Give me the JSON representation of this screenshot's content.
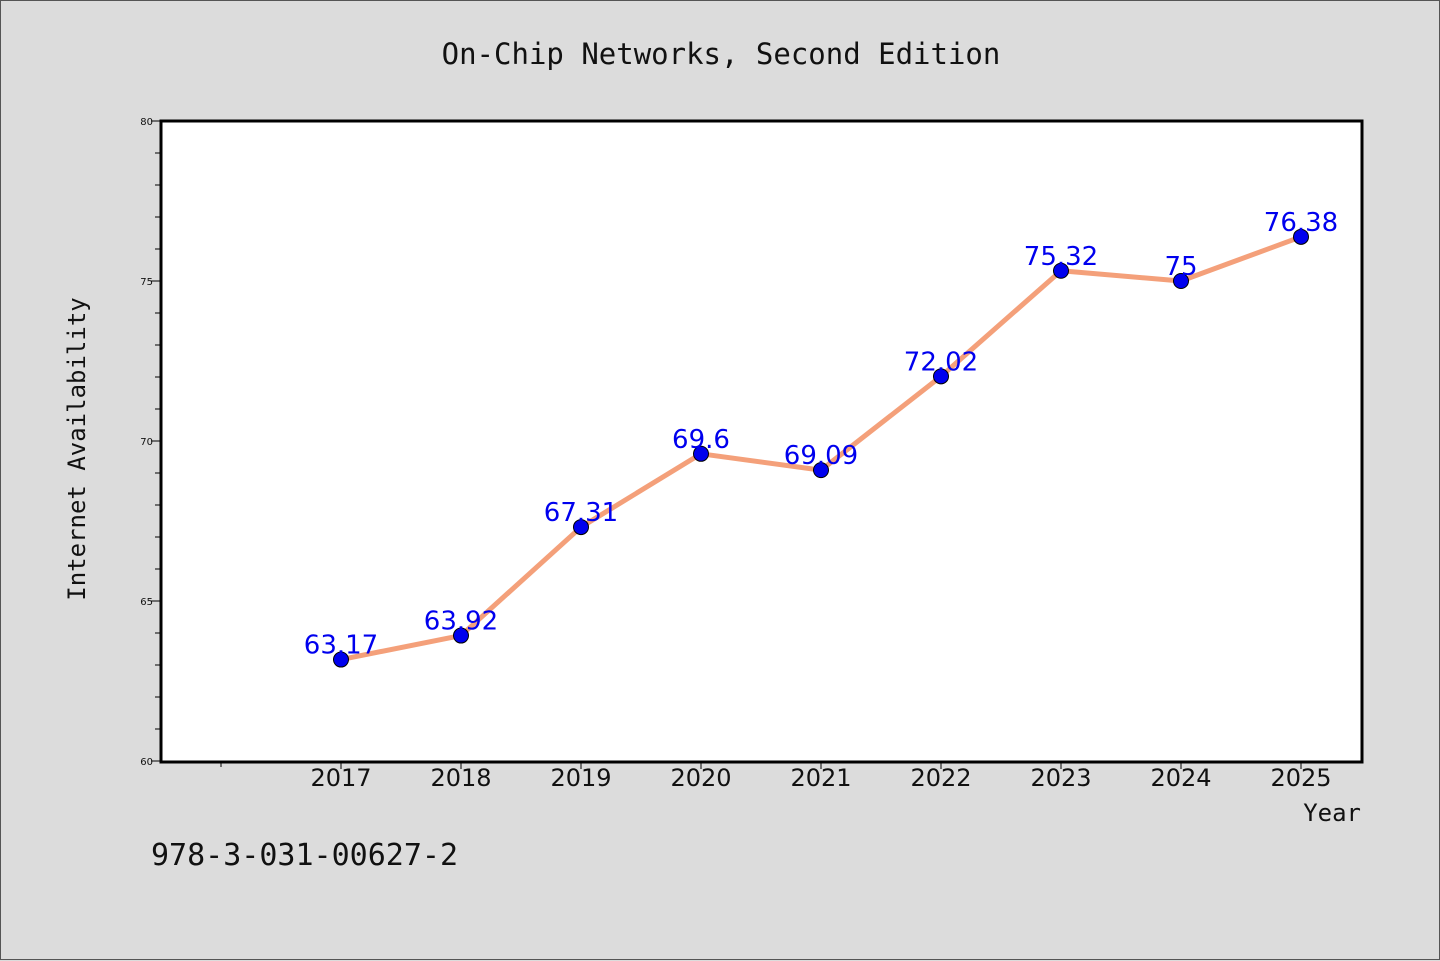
{
  "chart_data": {
    "type": "line",
    "title": "On-Chip Networks, Second Edition",
    "xlabel": "Year",
    "ylabel": "Internet Availability",
    "categories": [
      "2017",
      "2018",
      "2019",
      "2020",
      "2021",
      "2022",
      "2023",
      "2024",
      "2025"
    ],
    "values": [
      63.17,
      63.92,
      67.31,
      69.6,
      69.09,
      72.02,
      75.32,
      75,
      76.38
    ],
    "data_labels": [
      "63.17",
      "63.92",
      "67.31",
      "69.6",
      "69.09",
      "72.02",
      "75.32",
      "75",
      "76.38"
    ],
    "ylim": [
      60,
      80
    ],
    "yticks": [
      "60",
      "65",
      "70",
      "75",
      "80"
    ],
    "grid": false,
    "legend": "none",
    "line_color": "#f4a07a",
    "marker_color": "#0000ee",
    "label_color": "#0000ee"
  },
  "footer": {
    "isbn": "978-3-031-00627-2"
  }
}
